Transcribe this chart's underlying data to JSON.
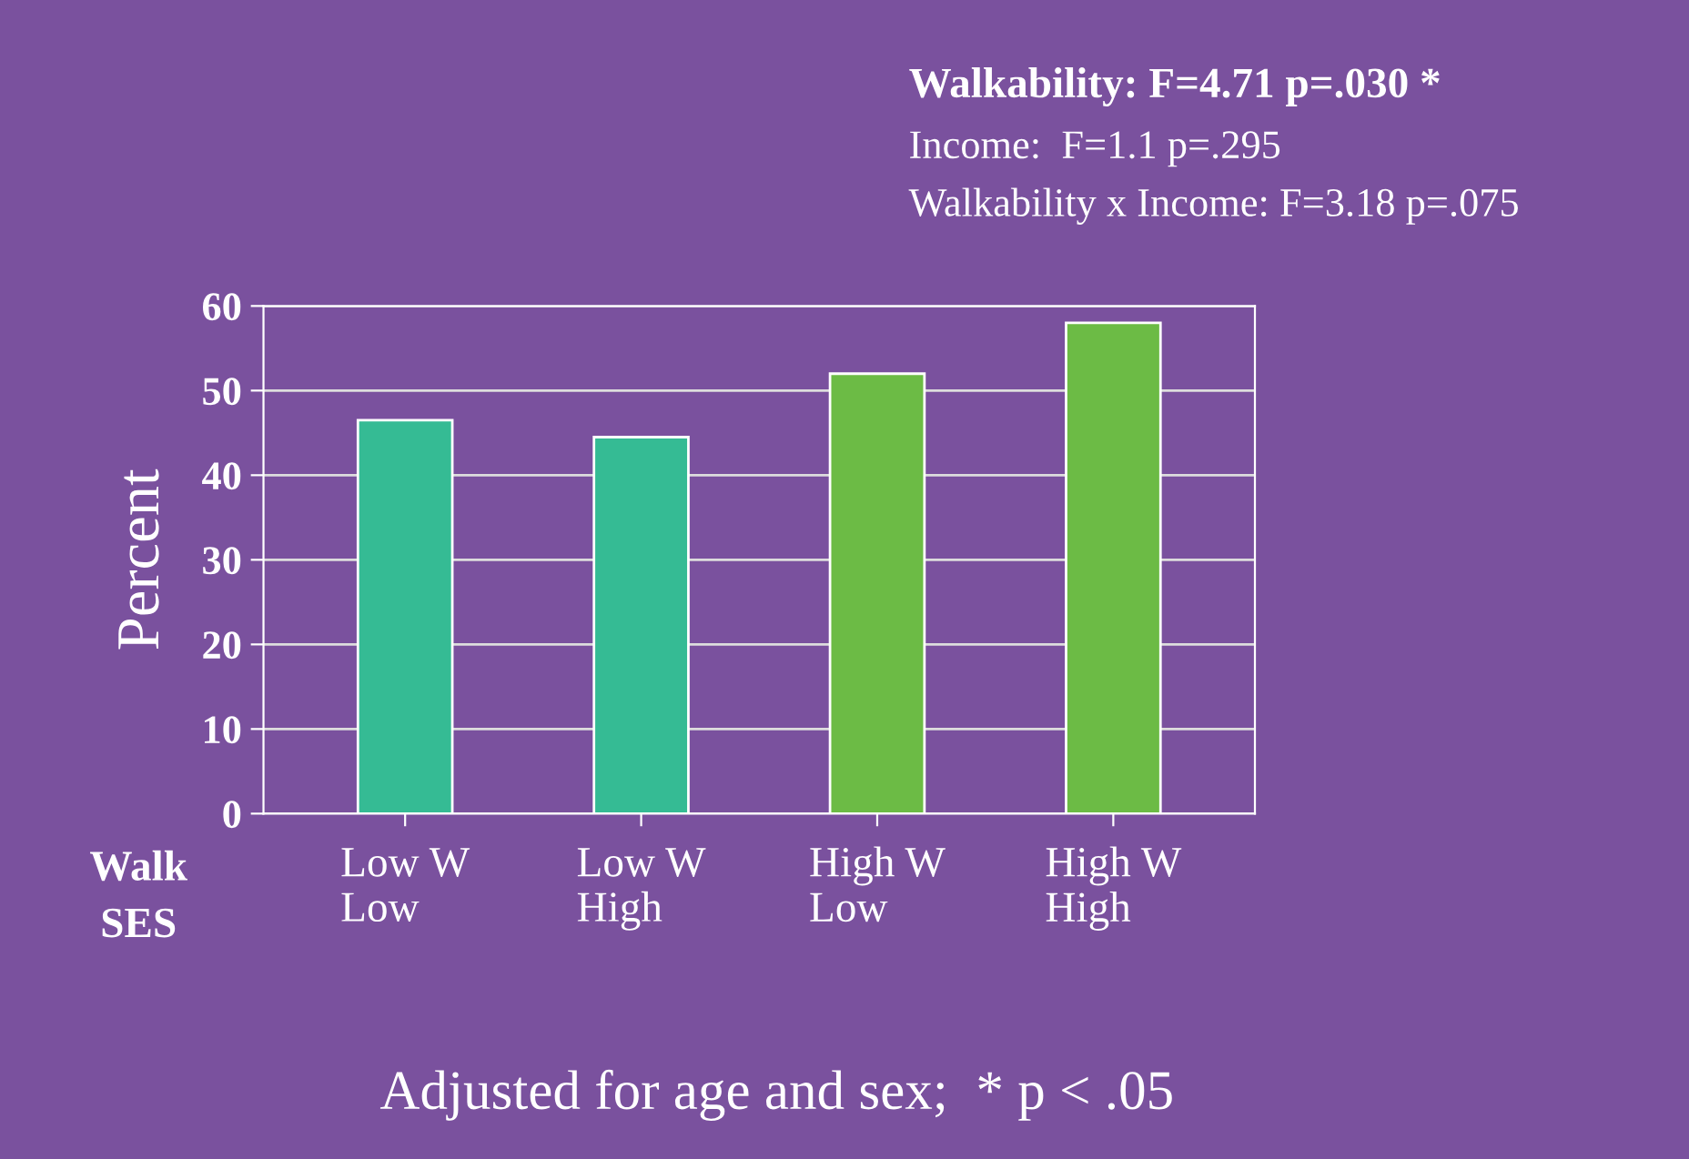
{
  "chart_data": {
    "type": "bar",
    "ylabel": "Percent",
    "categories": [
      "Low W\nLow",
      "Low W\nHigh",
      "High W\nLow",
      "High W\nHigh"
    ],
    "values": [
      46.5,
      44.5,
      52,
      58
    ],
    "colors": [
      "#35bb94",
      "#35bb94",
      "#6cbb45",
      "#6cbb45"
    ],
    "ylim": [
      0,
      60
    ],
    "yticks": [
      0,
      10,
      20,
      30,
      40,
      50,
      60
    ],
    "grid": "y",
    "annotations": [
      "Walkability: F=4.71 p=.030 *",
      "Income:  F=1.1 p=.295",
      "Walkability x Income: F=3.18 p=.075",
      "Walk\nSES",
      "Adjusted for age and sex;  * p < .05"
    ]
  }
}
